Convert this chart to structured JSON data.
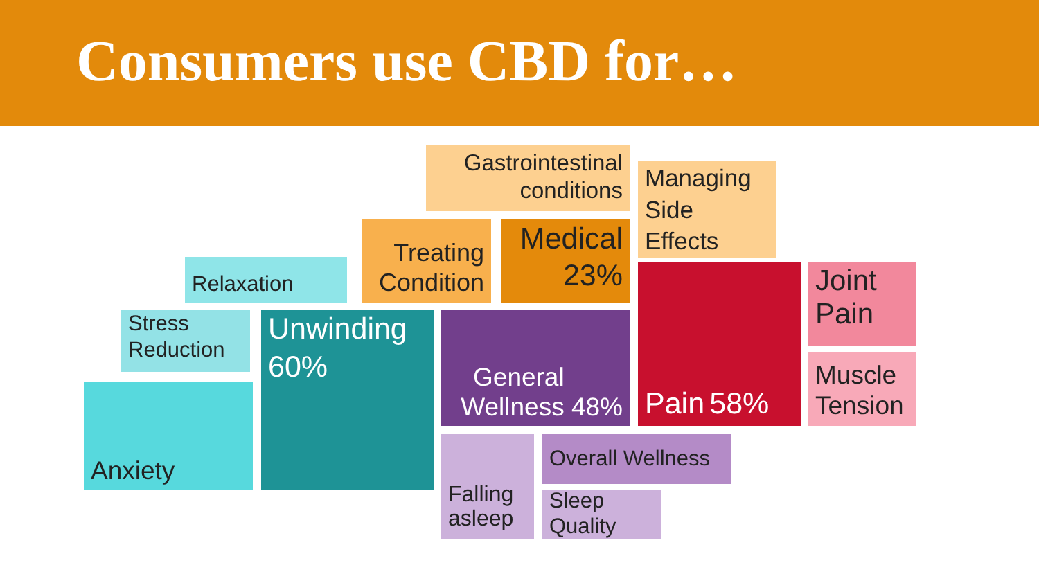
{
  "chart_data": {
    "type": "other",
    "title": "Consumers use CBD for…",
    "categories": [
      "Anxiety",
      "Stress Reduction",
      "Relaxation",
      "Unwinding",
      "Treating Condition",
      "Gastrointestinal conditions",
      "Medical",
      "Managing Side Effects",
      "Pain",
      "Joint Pain",
      "Muscle Tension",
      "General Wellness",
      "Overall Wellness",
      "Falling asleep",
      "Sleep Quality"
    ],
    "values": [
      null,
      null,
      null,
      60,
      null,
      null,
      23,
      null,
      58,
      null,
      null,
      48,
      null,
      null,
      null
    ],
    "value_labels": [
      null,
      null,
      null,
      "60%",
      null,
      null,
      "23%",
      null,
      "58%",
      null,
      null,
      "48%",
      null,
      null,
      null
    ],
    "colors": [
      "#57d9dd",
      "#93e2e6",
      "#8fe5e8",
      "#1e9396",
      "#f8b04d",
      "#fdd090",
      "#e48a0b",
      "#fdd090",
      "#c8102e",
      "#f2889c",
      "#f8a9b8",
      "#723f8c",
      "#b48bc7",
      "#ccb1db",
      "#ccb1db"
    ]
  }
}
